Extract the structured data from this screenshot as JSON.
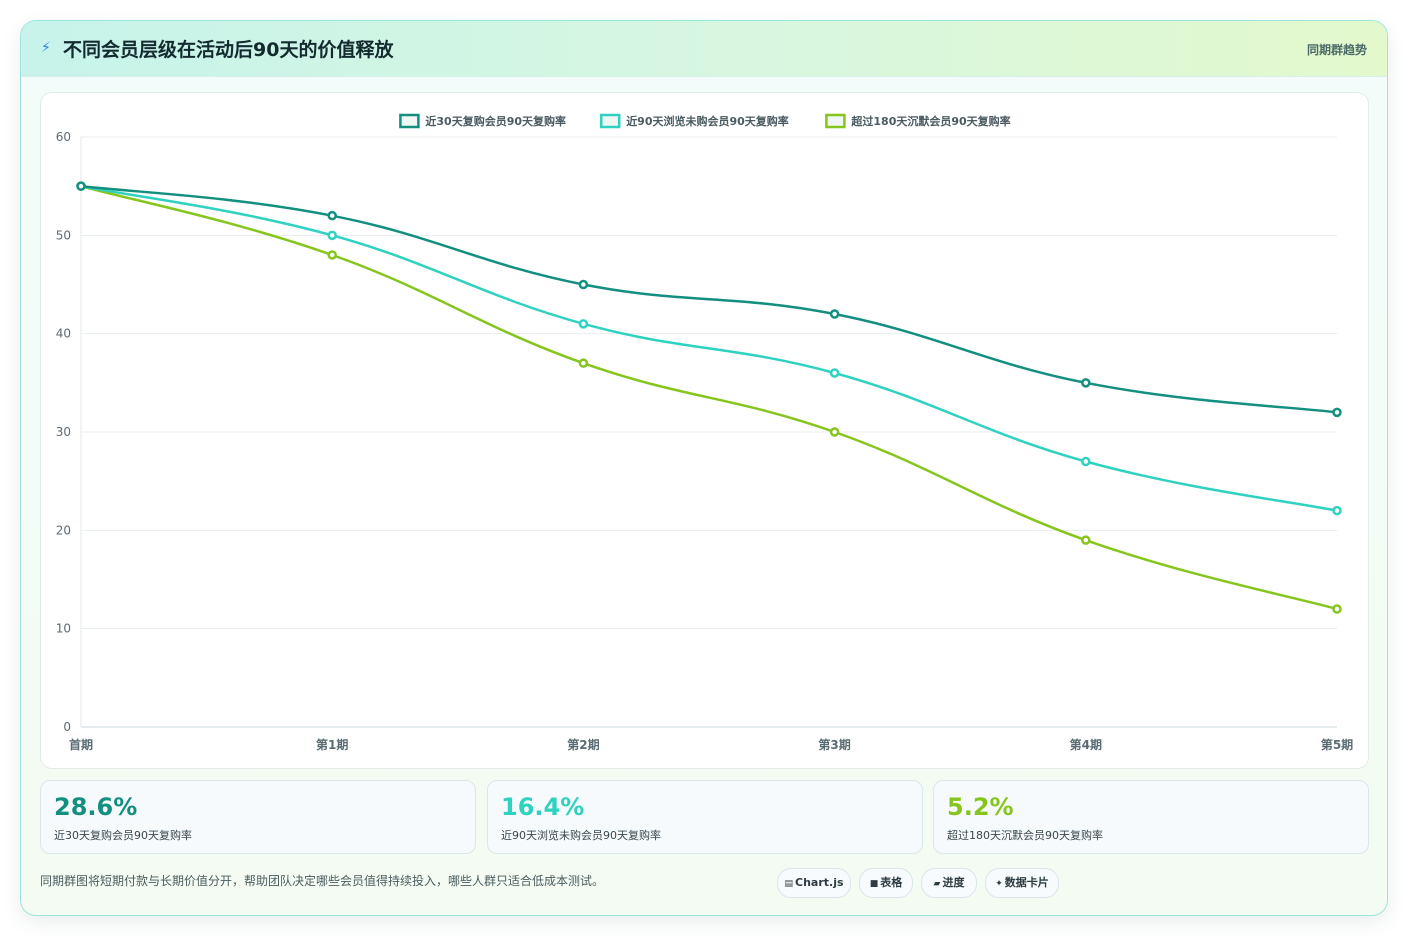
{
  "header": {
    "icon": "bolt-icon",
    "title": "不同会员层级在活动后90天的价值释放",
    "tag": "同期群趋势"
  },
  "chart_data": {
    "type": "line",
    "categories": [
      "首期",
      "第1期",
      "第2期",
      "第3期",
      "第4期",
      "第5期"
    ],
    "ylim": [
      0,
      60
    ],
    "yticks": [
      0,
      10,
      20,
      30,
      40,
      50,
      60
    ],
    "grid": true,
    "legend_position": "top-center",
    "series": [
      {
        "name": "近30天复购会员90天复购率",
        "color": "#138f80",
        "values": [
          55,
          52,
          45,
          42,
          35,
          32
        ]
      },
      {
        "name": "近90天浏览未购会员90天复购率",
        "color": "#2fd2c0",
        "values": [
          55,
          50,
          41,
          36,
          27,
          22
        ]
      },
      {
        "name": "超过180天沉默会员90天复购率",
        "color": "#86c51e",
        "values": [
          55,
          48,
          37,
          30,
          19,
          12
        ]
      }
    ]
  },
  "kpis": [
    {
      "value": "28.6%",
      "label": "近30天复购会员90天复购率",
      "color": "#138f80"
    },
    {
      "value": "16.4%",
      "label": "近90天浏览未购会员90天复购率",
      "color": "#2fd2c0"
    },
    {
      "value": "5.2%",
      "label": "超过180天沉默会员90天复购率",
      "color": "#86c51e"
    }
  ],
  "footer": {
    "description": "同期群图将短期付款与长期价值分开，帮助团队决定哪些会员值得持续投入，哪些人群只适合低成本测试。",
    "pills": [
      {
        "icon": "chart-icon",
        "glyph": "▤",
        "label": "Chart.js"
      },
      {
        "icon": "table-icon",
        "glyph": "■",
        "label": "表格"
      },
      {
        "icon": "progress-icon",
        "glyph": "▰",
        "label": "进度"
      },
      {
        "icon": "sparkle-icon",
        "glyph": "✦",
        "label": "数据卡片"
      }
    ]
  }
}
